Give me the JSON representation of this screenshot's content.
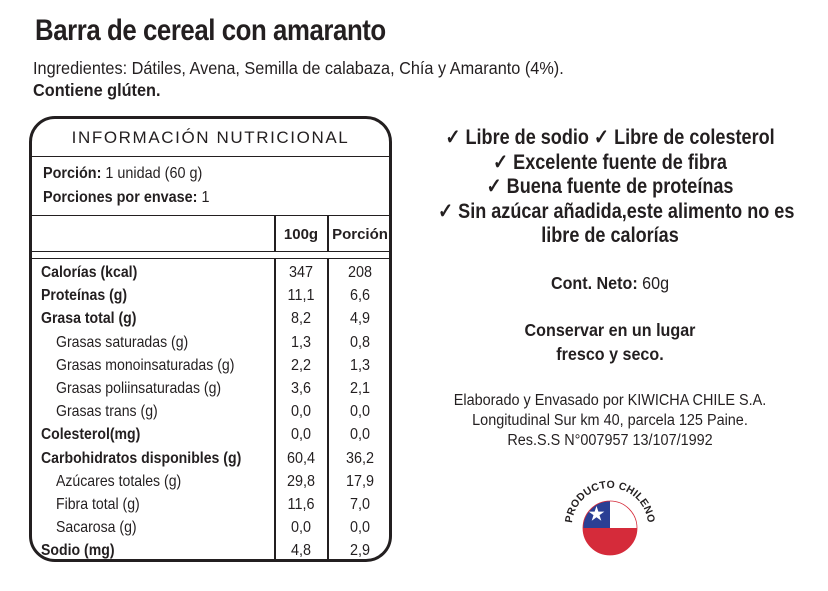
{
  "product": {
    "title": "Barra de cereal con amaranto",
    "ingredients": "Ingredientes:  Dátiles, Avena, Semilla de calabaza, Chía y Amaranto (4%).",
    "allergen": "Contiene glúten."
  },
  "nutrition": {
    "header": "INFORMACIÓN NUTRICIONAL",
    "portion_label": "Porción:",
    "portion_value": " 1 unidad (60 g)",
    "servings_label": "Porciones por envase:",
    "servings_value": " 1",
    "col_100g": "100g",
    "col_portion": "Porción",
    "rows": [
      {
        "label": "Calorías (kcal)",
        "bold": true,
        "indent": false,
        "v100": "347",
        "vport": "208"
      },
      {
        "label": "Proteínas (g)",
        "bold": true,
        "indent": false,
        "v100": "11,1",
        "vport": "6,6"
      },
      {
        "label": "Grasa total (g)",
        "bold": true,
        "indent": false,
        "v100": "8,2",
        "vport": "4,9"
      },
      {
        "label": "Grasas saturadas (g)",
        "bold": false,
        "indent": true,
        "v100": "1,3",
        "vport": "0,8"
      },
      {
        "label": "Grasas monoinsaturadas (g)",
        "bold": false,
        "indent": true,
        "v100": "2,2",
        "vport": "1,3"
      },
      {
        "label": "Grasas poliinsaturadas (g)",
        "bold": false,
        "indent": true,
        "v100": "3,6",
        "vport": "2,1"
      },
      {
        "label": "Grasas trans (g)",
        "bold": false,
        "indent": true,
        "v100": "0,0",
        "vport": "0,0"
      },
      {
        "label": "Colesterol(mg)",
        "bold": true,
        "indent": false,
        "v100": "0,0",
        "vport": "0,0"
      },
      {
        "label": "Carbohidratos disponibles (g)",
        "bold": true,
        "indent": false,
        "v100": "60,4",
        "vport": "36,2"
      },
      {
        "label": "Azúcares totales (g)",
        "bold": false,
        "indent": true,
        "v100": "29,8",
        "vport": "17,9"
      },
      {
        "label": "Fibra total (g)",
        "bold": false,
        "indent": true,
        "v100": "11,6",
        "vport": "7,0"
      },
      {
        "label": "Sacarosa (g)",
        "bold": false,
        "indent": true,
        "v100": "0,0",
        "vport": "0,0"
      },
      {
        "label": "Sodio (mg)",
        "bold": true,
        "indent": false,
        "v100": "4,8",
        "vport": "2,9"
      }
    ]
  },
  "claims": [
    "✓ Libre de sodio ✓ Libre de colesterol",
    "✓ Excelente fuente de fibra",
    "✓ Buena fuente de proteínas",
    "✓ Sin azúcar añadida,este alimento no es",
    "libre de calorías"
  ],
  "net_content": {
    "label": "Cont. Neto:",
    "value": " 60g"
  },
  "storage": [
    "Conservar en un lugar",
    "fresco y seco."
  ],
  "manufacturer": [
    "Elaborado y Envasado por KIWICHA CHILE S.A.",
    "Longitudinal Sur km 40, parcela 125 Paine.",
    "Res.S.S N°007957 13/107/1992"
  ],
  "seal": {
    "text": "PRODUCTO CHILENO",
    "icon": "chilean-flag-icon",
    "colors": {
      "blue": "#2b3f94",
      "red": "#d52b3a",
      "white": "#ffffff",
      "ink": "#231f20"
    }
  }
}
